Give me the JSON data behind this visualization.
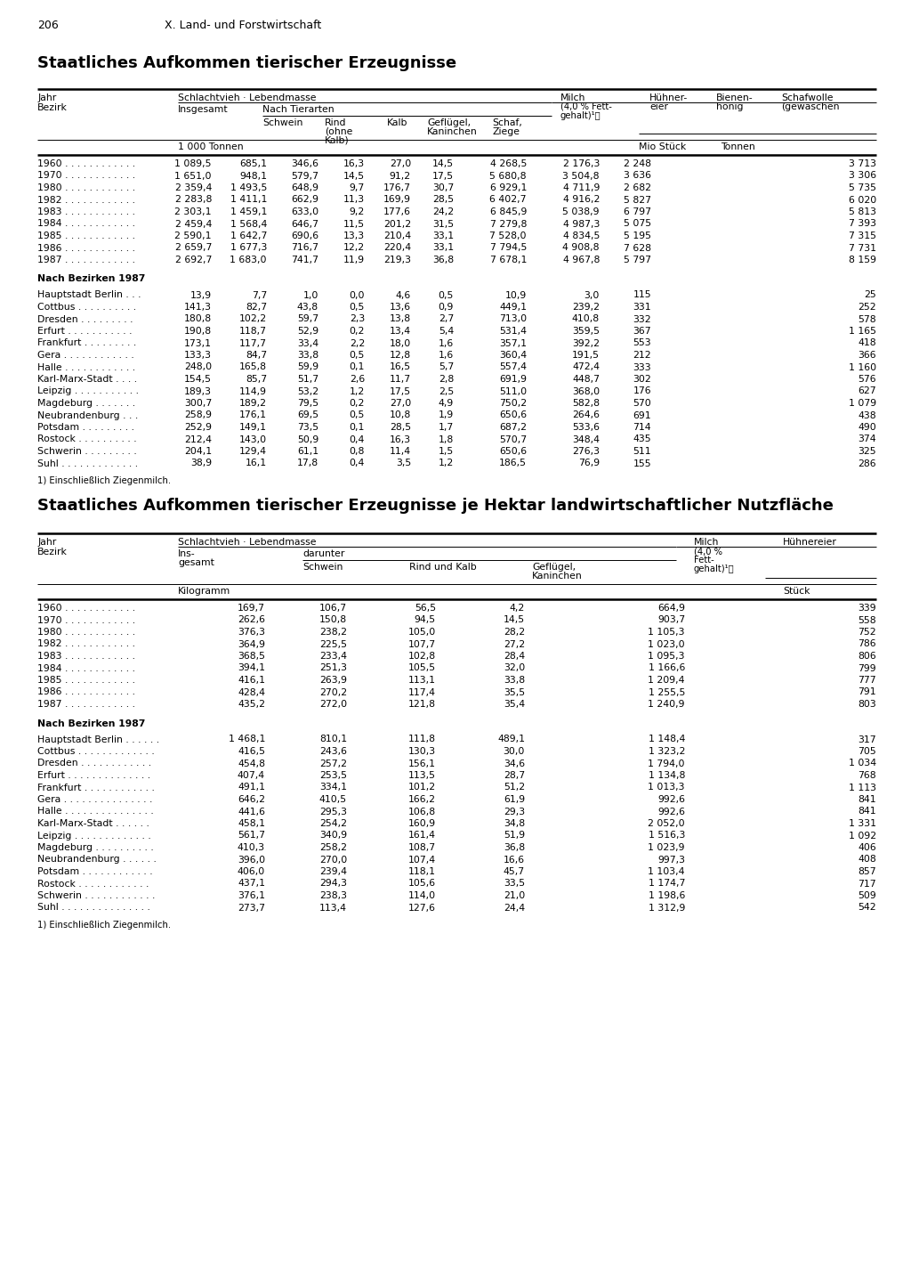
{
  "page_number": "206",
  "page_header": "X. Land- und Forstwirtschaft",
  "title1": "Staatliches Aufkommen tierischer Erzeugnisse",
  "title2": "Staatliches Aufkommen tierischer Erzeugnisse je Hektar landwirtschaftlicher Nutzfläche",
  "table1": {
    "years_data": [
      [
        "1960",
        "1 089,5",
        "685,1",
        "346,6",
        "16,3",
        "27,0",
        "14,5",
        "4 268,5",
        "2 176,3",
        "2 248",
        "3 713"
      ],
      [
        "1970",
        "1 651,0",
        "948,1",
        "579,7",
        "14,5",
        "91,2",
        "17,5",
        "5 680,8",
        "3 504,8",
        "3 636",
        "3 306"
      ],
      [
        "1980",
        "2 359,4",
        "1 493,5",
        "648,9",
        "9,7",
        "176,7",
        "30,7",
        "6 929,1",
        "4 711,9",
        "2 682",
        "5 735"
      ],
      [
        "1982",
        "2 283,8",
        "1 411,1",
        "662,9",
        "11,3",
        "169,9",
        "28,5",
        "6 402,7",
        "4 916,2",
        "5 827",
        "6 020"
      ],
      [
        "1983",
        "2 303,1",
        "1 459,1",
        "633,0",
        "9,2",
        "177,6",
        "24,2",
        "6 845,9",
        "5 038,9",
        "6 797",
        "5 813"
      ],
      [
        "1984",
        "2 459,4",
        "1 568,4",
        "646,7",
        "11,5",
        "201,2",
        "31,5",
        "7 279,8",
        "4 987,3",
        "5 075",
        "7 393"
      ],
      [
        "1985",
        "2 590,1",
        "1 642,7",
        "690,6",
        "13,3",
        "210,4",
        "33,1",
        "7 528,0",
        "4 834,5",
        "5 195",
        "7 315"
      ],
      [
        "1986",
        "2 659,7",
        "1 677,3",
        "716,7",
        "12,2",
        "220,4",
        "33,1",
        "7 794,5",
        "4 908,8",
        "7 628",
        "7 731"
      ],
      [
        "1987",
        "2 692,7",
        "1 683,0",
        "741,7",
        "11,9",
        "219,3",
        "36,8",
        "7 678,1",
        "4 967,8",
        "5 797",
        "8 159"
      ]
    ],
    "bezirke_header": "Nach Bezirken 1987",
    "bezirke_data": [
      [
        "Hauptstadt Berlin . . .",
        "13,9",
        "7,7",
        "1,0",
        "0,0",
        "4,6",
        "0,5",
        "10,9",
        "3,0",
        "115",
        "25"
      ],
      [
        "Cottbus . . . . . . . . . .",
        "141,3",
        "82,7",
        "43,8",
        "0,5",
        "13,6",
        "0,9",
        "449,1",
        "239,2",
        "331",
        "252"
      ],
      [
        "Dresden . . . . . . . . .",
        "180,8",
        "102,2",
        "59,7",
        "2,3",
        "13,8",
        "2,7",
        "713,0",
        "410,8",
        "332",
        "578"
      ],
      [
        "Erfurt . . . . . . . . . . .",
        "190,8",
        "118,7",
        "52,9",
        "0,2",
        "13,4",
        "5,4",
        "531,4",
        "359,5",
        "367",
        "1 165"
      ],
      [
        "Frankfurt . . . . . . . . .",
        "173,1",
        "117,7",
        "33,4",
        "2,2",
        "18,0",
        "1,6",
        "357,1",
        "392,2",
        "553",
        "418"
      ],
      [
        "Gera . . . . . . . . . . . .",
        "133,3",
        "84,7",
        "33,8",
        "0,5",
        "12,8",
        "1,6",
        "360,4",
        "191,5",
        "212",
        "366"
      ],
      [
        "Halle . . . . . . . . . . . .",
        "248,0",
        "165,8",
        "59,9",
        "0,1",
        "16,5",
        "5,7",
        "557,4",
        "472,4",
        "333",
        "1 160"
      ],
      [
        "Karl-Marx-Stadt . . . .",
        "154,5",
        "85,7",
        "51,7",
        "2,6",
        "11,7",
        "2,8",
        "691,9",
        "448,7",
        "302",
        "576"
      ],
      [
        "Leipzig . . . . . . . . . . .",
        "189,3",
        "114,9",
        "53,2",
        "1,2",
        "17,5",
        "2,5",
        "511,0",
        "368,0",
        "176",
        "627"
      ],
      [
        "Magdeburg . . . . . . .",
        "300,7",
        "189,2",
        "79,5",
        "0,2",
        "27,0",
        "4,9",
        "750,2",
        "582,8",
        "570",
        "1 079"
      ],
      [
        "Neubrandenburg . . .",
        "258,9",
        "176,1",
        "69,5",
        "0,5",
        "10,8",
        "1,9",
        "650,6",
        "264,6",
        "691",
        "438"
      ],
      [
        "Potsdam . . . . . . . . .",
        "252,9",
        "149,1",
        "73,5",
        "0,1",
        "28,5",
        "1,7",
        "687,2",
        "533,6",
        "714",
        "490"
      ],
      [
        "Rostock . . . . . . . . . .",
        "212,4",
        "143,0",
        "50,9",
        "0,4",
        "16,3",
        "1,8",
        "570,7",
        "348,4",
        "435",
        "374"
      ],
      [
        "Schwerin . . . . . . . . .",
        "204,1",
        "129,4",
        "61,1",
        "0,8",
        "11,4",
        "1,5",
        "650,6",
        "276,3",
        "511",
        "325"
      ],
      [
        "Suhl . . . . . . . . . . . . .",
        "38,9",
        "16,1",
        "17,8",
        "0,4",
        "3,5",
        "1,2",
        "186,5",
        "76,9",
        "155",
        "286"
      ]
    ],
    "footnote": "1) Einschließlich Ziegenmilch."
  },
  "table2": {
    "years_data": [
      [
        "1960",
        "169,7",
        "106,7",
        "56,5",
        "4,2",
        "664,9",
        "339"
      ],
      [
        "1970",
        "262,6",
        "150,8",
        "94,5",
        "14,5",
        "903,7",
        "558"
      ],
      [
        "1980",
        "376,3",
        "238,2",
        "105,0",
        "28,2",
        "1 105,3",
        "752"
      ],
      [
        "1982",
        "364,9",
        "225,5",
        "107,7",
        "27,2",
        "1 023,0",
        "786"
      ],
      [
        "1983",
        "368,5",
        "233,4",
        "102,8",
        "28,4",
        "1 095,3",
        "806"
      ],
      [
        "1984",
        "394,1",
        "251,3",
        "105,5",
        "32,0",
        "1 166,6",
        "799"
      ],
      [
        "1985",
        "416,1",
        "263,9",
        "113,1",
        "33,8",
        "1 209,4",
        "777"
      ],
      [
        "1986",
        "428,4",
        "270,2",
        "117,4",
        "35,5",
        "1 255,5",
        "791"
      ],
      [
        "1987",
        "435,2",
        "272,0",
        "121,8",
        "35,4",
        "1 240,9",
        "803"
      ]
    ],
    "bezirke_header": "Nach Bezirken 1987",
    "bezirke_data": [
      [
        "Hauptstadt Berlin . . . . . .",
        "1 468,1",
        "810,1",
        "111,8",
        "489,1",
        "1 148,4",
        "317"
      ],
      [
        "Cottbus . . . . . . . . . . . . .",
        "416,5",
        "243,6",
        "130,3",
        "30,0",
        "1 323,2",
        "705"
      ],
      [
        "Dresden . . . . . . . . . . . .",
        "454,8",
        "257,2",
        "156,1",
        "34,6",
        "1 794,0",
        "1 034"
      ],
      [
        "Erfurt . . . . . . . . . . . . . .",
        "407,4",
        "253,5",
        "113,5",
        "28,7",
        "1 134,8",
        "768"
      ],
      [
        "Frankfurt . . . . . . . . . . . .",
        "491,1",
        "334,1",
        "101,2",
        "51,2",
        "1 013,3",
        "1 113"
      ],
      [
        "Gera . . . . . . . . . . . . . . .",
        "646,2",
        "410,5",
        "166,2",
        "61,9",
        "992,6",
        "841"
      ],
      [
        "Halle . . . . . . . . . . . . . . .",
        "441,6",
        "295,3",
        "106,8",
        "29,3",
        "992,6",
        "841"
      ],
      [
        "Karl-Marx-Stadt . . . . . .",
        "458,1",
        "254,2",
        "160,9",
        "34,8",
        "2 052,0",
        "1 331"
      ],
      [
        "Leipzig . . . . . . . . . . . . .",
        "561,7",
        "340,9",
        "161,4",
        "51,9",
        "1 516,3",
        "1 092"
      ],
      [
        "Magdeburg . . . . . . . . . .",
        "410,3",
        "258,2",
        "108,7",
        "36,8",
        "1 023,9",
        "406"
      ],
      [
        "Neubrandenburg . . . . . .",
        "396,0",
        "270,0",
        "107,4",
        "16,6",
        "997,3",
        "408"
      ],
      [
        "Potsdam . . . . . . . . . . . .",
        "406,0",
        "239,4",
        "118,1",
        "45,7",
        "1 103,4",
        "857"
      ],
      [
        "Rostock . . . . . . . . . . . .",
        "437,1",
        "294,3",
        "105,6",
        "33,5",
        "1 174,7",
        "717"
      ],
      [
        "Schwerin . . . . . . . . . . . .",
        "376,1",
        "238,3",
        "114,0",
        "21,0",
        "1 198,6",
        "509"
      ],
      [
        "Suhl . . . . . . . . . . . . . . .",
        "273,7",
        "113,4",
        "127,6",
        "24,4",
        "1 312,9",
        "542"
      ]
    ],
    "footnote": "1) Einschließlich Ziegenmilch."
  }
}
